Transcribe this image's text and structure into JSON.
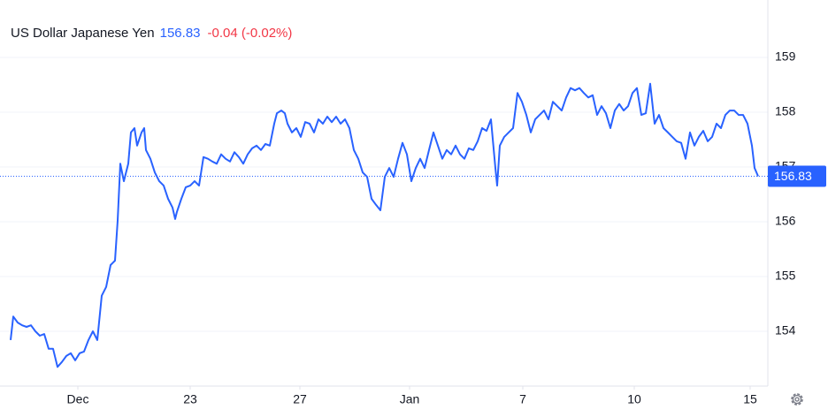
{
  "chart_data": {
    "type": "line",
    "title": "US Dollar Japanese Yen",
    "price": 156.83,
    "change": "-0.04 (-0.02%)",
    "xlim": [
      0,
      860
    ],
    "xticks": [
      {
        "value": 80,
        "label": "Dec"
      },
      {
        "value": 207,
        "label": "23"
      },
      {
        "value": 331,
        "label": "27"
      },
      {
        "value": 455,
        "label": "Jan"
      },
      {
        "value": 583,
        "label": "7"
      },
      {
        "value": 709,
        "label": "10"
      },
      {
        "value": 840,
        "label": "15"
      }
    ],
    "ylim": [
      153,
      160
    ],
    "yticks": [
      154,
      155,
      156,
      157,
      158,
      159
    ],
    "grid": true,
    "x": [
      4,
      7,
      12,
      17,
      22,
      27,
      32,
      37,
      42,
      47,
      52,
      57,
      62,
      67,
      72,
      77,
      82,
      87,
      92,
      97,
      102,
      107,
      112,
      117,
      122,
      125,
      128,
      132,
      137,
      140,
      144,
      147,
      152,
      155,
      157,
      162,
      167,
      172,
      177,
      182,
      187,
      190,
      192,
      197,
      202,
      207,
      212,
      217,
      222,
      227,
      232,
      237,
      242,
      247,
      252,
      257,
      262,
      267,
      272,
      277,
      282,
      287,
      292,
      297,
      302,
      305,
      310,
      314,
      317,
      322,
      327,
      332,
      337,
      342,
      347,
      352,
      357,
      362,
      367,
      372,
      377,
      382,
      387,
      392,
      397,
      402,
      407,
      412,
      417,
      422,
      427,
      432,
      437,
      442,
      447,
      452,
      457,
      462,
      467,
      472,
      477,
      482,
      487,
      492,
      497,
      502,
      507,
      512,
      517,
      522,
      527,
      532,
      537,
      542,
      547,
      552,
      554,
      557,
      562,
      567,
      572,
      577,
      582,
      587,
      592,
      597,
      602,
      607,
      612,
      617,
      622,
      627,
      632,
      637,
      642,
      647,
      652,
      657,
      662,
      667,
      672,
      677,
      682,
      687,
      692,
      697,
      702,
      707,
      712,
      717,
      722,
      727,
      732,
      737,
      742,
      747,
      752,
      757,
      762,
      767,
      772,
      777,
      782,
      787,
      792,
      797,
      802,
      807,
      812,
      817,
      822,
      827,
      832,
      837,
      842,
      845,
      849
    ],
    "series": [
      {
        "name": "US Dollar Japanese Yen",
        "color": "#2962ff",
        "values": [
          153.84,
          154.27,
          154.16,
          154.11,
          154.08,
          154.11,
          154.0,
          153.92,
          153.95,
          153.68,
          153.68,
          153.35,
          153.44,
          153.55,
          153.6,
          153.47,
          153.6,
          153.63,
          153.84,
          154.0,
          153.84,
          154.65,
          154.81,
          155.21,
          155.29,
          156.02,
          157.06,
          156.74,
          157.06,
          157.63,
          157.71,
          157.39,
          157.63,
          157.71,
          157.31,
          157.15,
          156.9,
          156.74,
          156.66,
          156.42,
          156.26,
          156.05,
          156.18,
          156.42,
          156.63,
          156.66,
          156.74,
          156.66,
          157.18,
          157.15,
          157.1,
          157.06,
          157.23,
          157.15,
          157.1,
          157.27,
          157.18,
          157.06,
          157.23,
          157.34,
          157.39,
          157.31,
          157.42,
          157.39,
          157.79,
          157.98,
          158.03,
          157.98,
          157.79,
          157.63,
          157.71,
          157.55,
          157.82,
          157.79,
          157.63,
          157.87,
          157.79,
          157.92,
          157.82,
          157.92,
          157.79,
          157.87,
          157.71,
          157.31,
          157.15,
          156.9,
          156.82,
          156.42,
          156.31,
          156.21,
          156.82,
          156.98,
          156.82,
          157.15,
          157.44,
          157.23,
          156.74,
          156.98,
          157.15,
          156.98,
          157.31,
          157.63,
          157.39,
          157.15,
          157.31,
          157.23,
          157.39,
          157.23,
          157.15,
          157.34,
          157.31,
          157.47,
          157.71,
          157.66,
          157.87,
          156.98,
          156.66,
          157.39,
          157.55,
          157.63,
          157.71,
          158.35,
          158.19,
          157.95,
          157.63,
          157.87,
          157.95,
          158.03,
          157.87,
          158.19,
          158.11,
          158.03,
          158.27,
          158.44,
          158.4,
          158.44,
          158.35,
          158.27,
          158.31,
          157.95,
          158.11,
          157.98,
          157.71,
          158.03,
          158.15,
          158.03,
          158.11,
          158.35,
          158.44,
          157.95,
          157.98,
          158.52,
          157.79,
          157.95,
          157.71,
          157.63,
          157.55,
          157.47,
          157.44,
          157.15,
          157.63,
          157.39,
          157.55,
          157.66,
          157.47,
          157.55,
          157.79,
          157.71,
          157.95,
          158.03,
          158.03,
          157.95,
          157.95,
          157.79,
          157.39,
          156.98,
          156.83
        ]
      }
    ]
  }
}
